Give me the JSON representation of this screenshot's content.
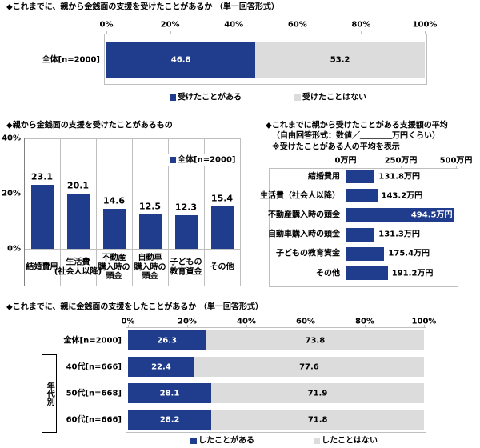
{
  "chart_data": [
    {
      "type": "stacked_barh",
      "title": "◆これまでに、親から金銭面の支援を受けたことがあるか （単一回答形式）",
      "categories": [
        "全体[n=2000]"
      ],
      "series": [
        {
          "name": "受けたことがある",
          "color": "#1f3d8c",
          "values": [
            46.8
          ]
        },
        {
          "name": "受けたことはない",
          "color": "#dcdcdc",
          "values": [
            53.2
          ]
        }
      ],
      "xlim": [
        0,
        100
      ],
      "xticks": [
        {
          "value": 0,
          "label": "0%"
        },
        {
          "value": 20,
          "label": "20%"
        },
        {
          "value": 40,
          "label": "40%"
        },
        {
          "value": 60,
          "label": "60%"
        },
        {
          "value": 80,
          "label": "80%"
        },
        {
          "value": 100,
          "label": "100%"
        }
      ]
    },
    {
      "type": "bar",
      "title": "◆親から金銭面の支援を受けたことがあるもの",
      "categories": [
        "結婚費用",
        "生活費\n(社会人以降)",
        "不動産\n購入時の\n頭金",
        "自動車\n購入時の\n頭金",
        "子どもの\n教育資金",
        "その他"
      ],
      "series": [
        {
          "name": "全体[n=2000]",
          "color": "#1f3d8c",
          "values": [
            23.1,
            20.1,
            14.6,
            12.5,
            12.3,
            15.4
          ]
        }
      ],
      "ylim": [
        0,
        40
      ],
      "yticks": [
        {
          "value": 0,
          "label": "0%"
        },
        {
          "value": 20,
          "label": "20%"
        },
        {
          "value": 40,
          "label": "40%"
        }
      ]
    },
    {
      "type": "barh",
      "title": "◆これまでに親から受けたことがある支援額の平均",
      "subtitle": "（自由回答形式：数値／＿＿＿＿万円くらい）",
      "note": "※受けたことがある人の平均を表示",
      "categories": [
        "結婚費用",
        "生活費（社会人以降）",
        "不動産購入時の頭金",
        "自動車購入時の頭金",
        "子どもの教育資金",
        "その他"
      ],
      "values": [
        131.8,
        143.2,
        494.5,
        131.3,
        175.4,
        191.2
      ],
      "value_labels": [
        "131.8万円",
        "143.2万円",
        "494.5万円",
        "131.3万円",
        "175.4万円",
        "191.2万円"
      ],
      "color": "#1f3d8c",
      "xlim": [
        0,
        500
      ],
      "xticks": [
        {
          "value": 0,
          "label": "0万円"
        },
        {
          "value": 250,
          "label": "250万円"
        },
        {
          "value": 500,
          "label": "500万円"
        }
      ]
    },
    {
      "type": "stacked_barh",
      "title": "◆これまでに、親に金銭面の支援をしたことがあるか （単一回答形式）",
      "categories": [
        "全体[n=2000]",
        "40代[n=666]",
        "50代[n=668]",
        "60代[n=666]"
      ],
      "group_label": "年代別",
      "series": [
        {
          "name": "したことがある",
          "color": "#1f3d8c",
          "values": [
            26.3,
            22.4,
            28.1,
            28.2
          ]
        },
        {
          "name": "したことはない",
          "color": "#dcdcdc",
          "values": [
            73.8,
            77.6,
            71.9,
            71.8
          ]
        }
      ],
      "xlim": [
        0,
        100
      ],
      "xticks": [
        {
          "value": 0,
          "label": "0%"
        },
        {
          "value": 20,
          "label": "20%"
        },
        {
          "value": 40,
          "label": "40%"
        },
        {
          "value": 60,
          "label": "60%"
        },
        {
          "value": 80,
          "label": "80%"
        },
        {
          "value": 100,
          "label": "100%"
        }
      ]
    }
  ]
}
